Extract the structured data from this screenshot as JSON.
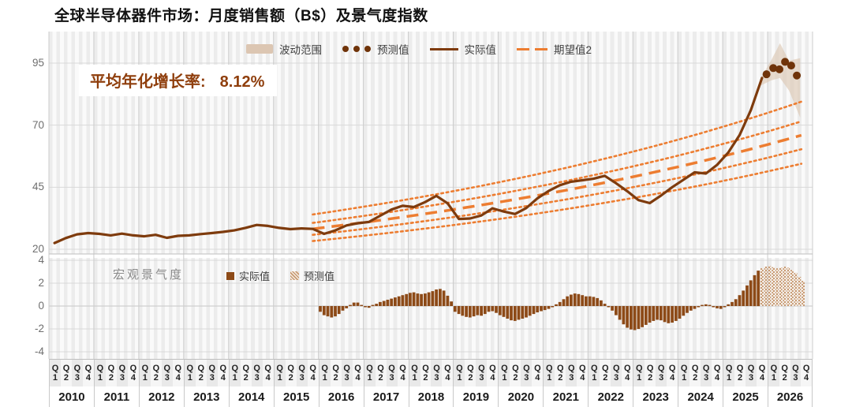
{
  "title": "全球半导体器件市场：月度销售额（B$）及景气度指数",
  "growth_callout": {
    "label": "平均年化增长率:",
    "value": "8.12%"
  },
  "legend_top": {
    "items": [
      {
        "marker": "band-swatch",
        "label": "波动范围"
      },
      {
        "marker": "dots",
        "label": "预测值"
      },
      {
        "marker": "solid-line",
        "label": "实际值"
      },
      {
        "marker": "dashed-line",
        "label": "期望值2"
      }
    ]
  },
  "legend_bottom": {
    "title": "宏观景气度",
    "items": [
      {
        "marker": "solid-square",
        "label": "实际值"
      },
      {
        "marker": "hatch-square",
        "label": "预测值"
      }
    ]
  },
  "colors": {
    "actual_line": "#7e3b0d",
    "forecast_dot": "#6f3309",
    "trend_orange": "#ed7d31",
    "band_beige": "#dcc6b2",
    "bar_brown": "#8d4a17",
    "hatch_brown": "#c79a73",
    "hatch_bg": "#f6ece2",
    "growth_text": "#8f3e0c",
    "grid": "#d9d9d9",
    "year_grid": "#cccccc",
    "tick_text": "#6f6f6f"
  },
  "x_axis": {
    "quarter_prefix": "Q",
    "quarter_numbers": [
      "1",
      "2",
      "3",
      "4"
    ],
    "years": [
      "2010",
      "2011",
      "2012",
      "2013",
      "2014",
      "2015",
      "2016",
      "2017",
      "2018",
      "2019",
      "2020",
      "2021",
      "2022",
      "2023",
      "2024",
      "2025",
      "2026"
    ]
  },
  "chart_data": [
    {
      "type": "line",
      "id": "monthly-sales",
      "title": "月度销售额（B$）",
      "yticks": [
        95,
        70,
        45,
        20
      ],
      "ylim": [
        18,
        108
      ],
      "x_unit": "quarter (2010Q1=0)",
      "series": [
        {
          "name": "实际值",
          "style": "solid-brown-line",
          "quarterly_values": [
            22.5,
            24.5,
            26,
            26.5,
            26.2,
            25.6,
            26.3,
            25.6,
            25.2,
            25.8,
            24.6,
            25.4,
            25.6,
            26.1,
            26.5,
            27,
            27.6,
            28.6,
            29.8,
            29.4,
            28.6,
            28.1,
            28.4,
            28.2,
            26.2,
            27.6,
            29.6,
            30.5,
            31,
            33.5,
            36,
            37.5,
            37,
            39,
            41.5,
            38.5,
            32.2,
            32.4,
            33.6,
            36.5,
            35.2,
            34.2,
            36.6,
            40.5,
            43.5,
            45.8,
            47.2,
            47.8,
            48.4,
            49.6,
            46.6,
            43.4,
            39.8,
            38.6,
            41.6,
            45,
            48,
            51,
            50.5,
            54,
            59,
            66,
            76,
            89
          ]
        },
        {
          "name": "预测值",
          "style": "brown-dots",
          "points": [
            {
              "x_quarter": 63.9,
              "value": 90.5
            },
            {
              "x_quarter": 64.5,
              "value": 93
            },
            {
              "x_quarter": 65.05,
              "value": 92.5
            },
            {
              "x_quarter": 65.55,
              "value": 95.5
            },
            {
              "x_quarter": 66.1,
              "value": 94
            },
            {
              "x_quarter": 66.6,
              "value": 90
            }
          ]
        },
        {
          "name": "期望值2",
          "style": "orange-dashed-exponential",
          "annual_growth_pct": 8.12,
          "start_quarter": 23.5,
          "end_quarter": 68,
          "start_value": 28.2
        },
        {
          "name": "增长通道虚线",
          "style": "orange-dotted-exponential-fan",
          "annual_growth_pct": 8.12,
          "start_quarter": 23.5,
          "end_quarter": 68,
          "start_values": [
            34,
            30.6,
            25.8,
            23.3
          ]
        },
        {
          "name": "波动范围",
          "style": "beige-band",
          "polygon_top": [
            [
              63.4,
              89
            ],
            [
              64.3,
              96
            ],
            [
              65.1,
              103
            ],
            [
              65.9,
              96
            ],
            [
              66.9,
              97
            ]
          ],
          "polygon_bottom": [
            [
              66.9,
              73
            ],
            [
              65.9,
              84
            ],
            [
              65.1,
              89
            ],
            [
              64.3,
              88
            ],
            [
              63.4,
              86
            ]
          ]
        }
      ]
    },
    {
      "type": "bar",
      "id": "macro-sentiment",
      "title": "宏观景气度",
      "yticks": [
        4,
        2,
        0,
        -2,
        -4
      ],
      "ylim": [
        -4.6,
        4.2
      ],
      "x_unit": "month",
      "actual_start": "2016-01",
      "forecast_start": "2025-11",
      "actual_monthly_values": [
        -0.5,
        -0.8,
        -0.9,
        -1.0,
        -0.9,
        -0.7,
        -0.4,
        -0.2,
        0.1,
        0.3,
        0.3,
        0.1,
        -0.1,
        -0.15,
        0.1,
        0.2,
        0.35,
        0.45,
        0.55,
        0.65,
        0.75,
        0.85,
        0.95,
        1.05,
        1.15,
        1.2,
        1.1,
        1.05,
        1.1,
        1.2,
        1.3,
        1.45,
        1.5,
        1.35,
        0.9,
        0.4,
        -0.5,
        -0.7,
        -0.85,
        -0.95,
        -1.0,
        -0.9,
        -0.8,
        -0.85,
        -0.7,
        -0.5,
        -0.45,
        -0.6,
        -0.8,
        -0.95,
        -1.1,
        -1.25,
        -1.3,
        -1.2,
        -1.1,
        -1.0,
        -0.85,
        -0.7,
        -0.55,
        -0.45,
        -0.35,
        -0.25,
        -0.1,
        0.15,
        0.35,
        0.6,
        0.85,
        1.0,
        1.1,
        1.05,
        0.95,
        0.85,
        0.85,
        0.8,
        0.7,
        0.5,
        0.2,
        -0.1,
        -0.4,
        -0.8,
        -1.2,
        -1.6,
        -1.9,
        -2.05,
        -2.1,
        -2.0,
        -1.85,
        -1.65,
        -1.45,
        -1.3,
        -1.2,
        -1.25,
        -1.4,
        -1.5,
        -1.45,
        -1.3,
        -1.1,
        -0.85,
        -0.6,
        -0.4,
        -0.25,
        -0.1,
        0.1,
        0.15,
        0.1,
        -0.1,
        -0.2,
        -0.25,
        -0.1,
        0.15,
        0.35,
        0.6,
        0.95,
        1.35,
        1.8,
        2.25,
        2.7,
        3.1
      ],
      "forecast_monthly_values": [
        3.3,
        3.45,
        3.5,
        3.4,
        3.3,
        3.35,
        3.45,
        3.35,
        3.15,
        2.9,
        2.55,
        2.2
      ]
    }
  ]
}
